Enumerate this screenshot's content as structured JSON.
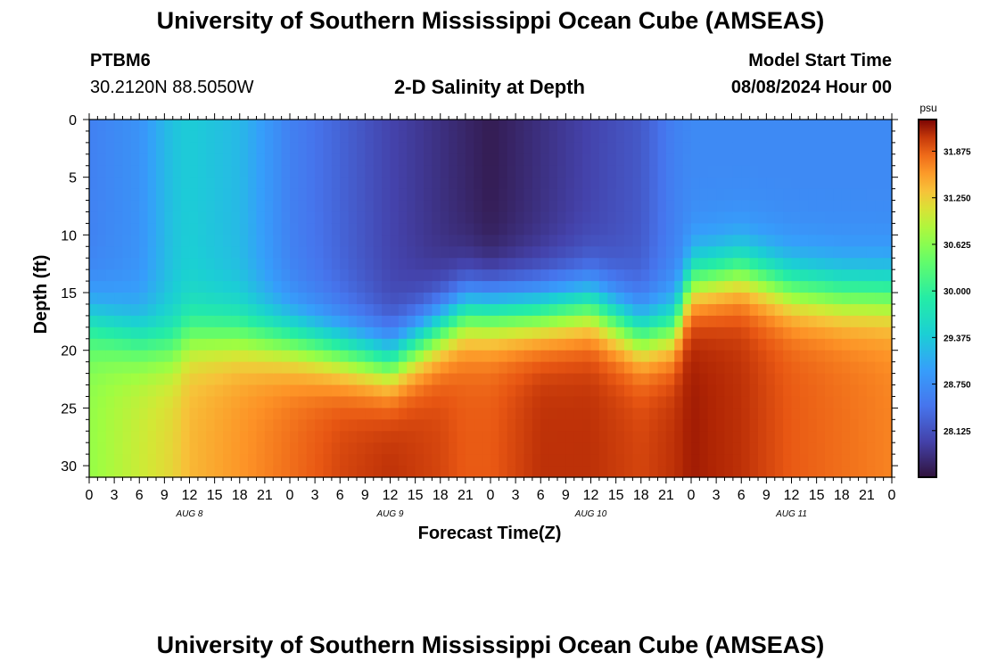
{
  "header": {
    "title": "University of Southern Mississippi Ocean Cube (AMSEAS)",
    "station_id": "PTBM6",
    "station_coords": "30.2120N  88.5050W",
    "plot_title": "2-D Salinity at Depth",
    "model_label": "Model Start Time",
    "model_start": "08/08/2024 Hour 00"
  },
  "footer": {
    "title": "University of Southern Mississippi Ocean Cube (AMSEAS)"
  },
  "chart_data": {
    "type": "heatmap",
    "title": "2-D Salinity at Depth",
    "xlabel": "Forecast Time(Z)",
    "ylabel": "Depth (ft)",
    "xlim": [
      0,
      96
    ],
    "ylim": [
      31,
      0
    ],
    "y_ticks": [
      0,
      5,
      10,
      15,
      20,
      25,
      30
    ],
    "x_tick_labels": [
      "0",
      "3",
      "6",
      "9",
      "12",
      "15",
      "18",
      "21",
      "0",
      "3",
      "6",
      "9",
      "12",
      "15",
      "18",
      "21",
      "0",
      "3",
      "6",
      "9",
      "12",
      "15",
      "18",
      "21",
      "0",
      "3",
      "6",
      "9",
      "12",
      "15",
      "18",
      "21",
      "0"
    ],
    "day_labels": [
      {
        "label": "AUG 8",
        "hour": 12
      },
      {
        "label": "AUG 9",
        "hour": 36
      },
      {
        "label": "AUG 10",
        "hour": 60
      },
      {
        "label": "AUG 11",
        "hour": 84
      }
    ],
    "colorbar": {
      "unit": "psu",
      "min": 27.5,
      "max": 32.3,
      "tick_labels": [
        "31.875",
        "31.250",
        "30.625",
        "30.000",
        "29.375",
        "28.750",
        "28.125"
      ]
    },
    "boundary_hours": [
      0,
      6,
      10,
      12,
      18,
      24,
      30,
      36,
      42,
      45,
      48,
      54,
      60,
      66,
      70,
      72,
      78,
      84,
      90,
      96
    ],
    "halocline_depth_ft": [
      17.5,
      19,
      19.5,
      18.5,
      18.5,
      19,
      20,
      21,
      18,
      16.5,
      16.5,
      16.5,
      16,
      18.5,
      18,
      14,
      13,
      14.5,
      15,
      15
    ],
    "surface_salinity_psu": [
      28.6,
      28.8,
      29.3,
      29.4,
      29.2,
      28.6,
      28.3,
      28.0,
      27.8,
      27.7,
      27.6,
      27.8,
      28.0,
      28.2,
      28.6,
      28.7,
      28.7,
      28.7,
      28.7,
      28.7
    ],
    "deep_salinity_psu": [
      30.7,
      31.0,
      31.2,
      31.4,
      31.6,
      31.8,
      32.0,
      32.1,
      32.0,
      31.9,
      31.9,
      32.1,
      32.1,
      32.0,
      32.1,
      32.2,
      32.1,
      31.9,
      31.8,
      31.7
    ]
  }
}
